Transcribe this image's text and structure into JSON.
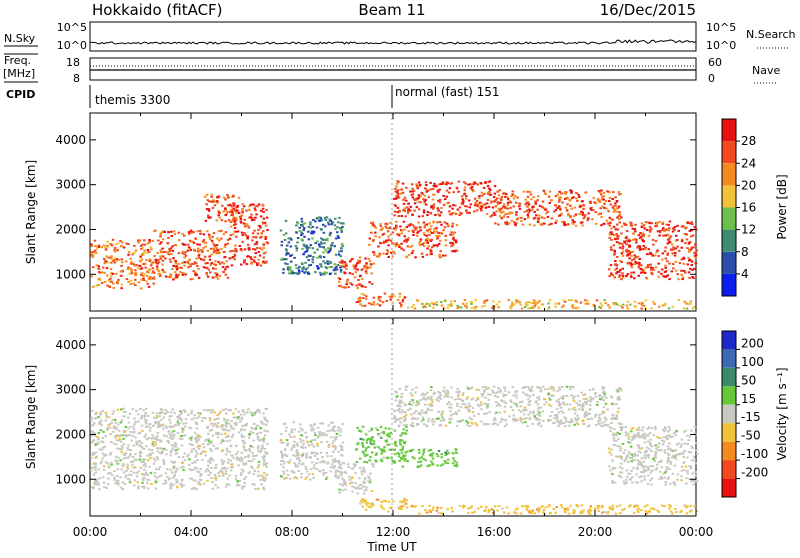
{
  "header": {
    "station": "Hokkaido (fitACF)",
    "beam": "Beam 11",
    "date": "16/Dec/2015"
  },
  "strip": {
    "nsky_label": "N.Sky",
    "nsky_ticks": [
      "10^5",
      "10^0"
    ],
    "nsearch_label": "N.Search",
    "nsearch_ticks": [
      "10^5",
      "10^0"
    ],
    "freq_label_line1": "Freq.",
    "freq_label_line2": "[MHz]",
    "freq_ticks": [
      "18",
      "8"
    ],
    "nave_label": "Nave",
    "nave_ticks": [
      "60",
      "0"
    ],
    "cpid_label": "CPID",
    "cpid_entries": [
      {
        "text": "themis 3300",
        "start_hour": 0
      },
      {
        "text": "normal (fast) 151",
        "start_hour": 12
      }
    ]
  },
  "xaxis": {
    "title": "Time UT",
    "ticks": [
      "00:00",
      "04:00",
      "08:00",
      "12:00",
      "16:00",
      "20:00",
      "00:00"
    ]
  },
  "power_panel": {
    "ylabel": "Slant Range [km]",
    "yticks": [
      "1000",
      "2000",
      "3000",
      "4000"
    ],
    "colorbar_title": "Power [dB]",
    "colorbar_ticks": [
      "4",
      "8",
      "12",
      "16",
      "20",
      "24",
      "28"
    ],
    "colors": [
      "#0a1ef0",
      "#2b4fa8",
      "#3f8a72",
      "#6cbf4a",
      "#f2c23a",
      "#f58a1e",
      "#f24a1e",
      "#e81010"
    ]
  },
  "velocity_panel": {
    "ylabel": "Slant Range [km]",
    "yticks": [
      "1000",
      "2000",
      "3000",
      "4000"
    ],
    "colorbar_title": "Velocity [m s⁻¹]",
    "colorbar_ticks": [
      "200",
      "100",
      "50",
      "15",
      "-15",
      "-50",
      "-100",
      "-200"
    ],
    "colors": [
      "#1e28c8",
      "#3c6ab4",
      "#3a8a6a",
      "#64c83a",
      "#c8c8c0",
      "#f2c23a",
      "#f58a1e",
      "#f24a1e",
      "#e81010"
    ]
  },
  "chart_data": [
    {
      "type": "heatmap",
      "title": "Hokkaido (fitACF) Beam 11 16/Dec/2015",
      "quantity": "Power",
      "xlabel": "Time UT",
      "ylabel": "Slant Range [km]",
      "x_range_hours": [
        0,
        24
      ],
      "ylim": [
        180,
        4600
      ],
      "color_range": [
        0,
        30
      ],
      "regions": [
        {
          "t_start": 0.0,
          "t_end": 2.5,
          "range_low": 700,
          "range_high": 1800,
          "power": 22
        },
        {
          "t_start": 2.5,
          "t_end": 5.5,
          "range_low": 900,
          "range_high": 2000,
          "power": 24
        },
        {
          "t_start": 5.5,
          "t_end": 7.0,
          "range_low": 1200,
          "range_high": 2600,
          "power": 26
        },
        {
          "t_start": 4.5,
          "t_end": 6.0,
          "range_low": 2200,
          "range_high": 2800,
          "power": 24
        },
        {
          "t_start": 7.5,
          "t_end": 10.0,
          "range_low": 1000,
          "range_high": 2300,
          "power": 8
        },
        {
          "t_start": 9.8,
          "t_end": 11.2,
          "range_low": 700,
          "range_high": 1400,
          "power": 24
        },
        {
          "t_start": 10.5,
          "t_end": 12.5,
          "range_low": 300,
          "range_high": 600,
          "power": 22
        },
        {
          "t_start": 11.0,
          "t_end": 14.5,
          "range_low": 1400,
          "range_high": 2200,
          "power": 24
        },
        {
          "t_start": 12.0,
          "t_end": 16.0,
          "range_low": 2300,
          "range_high": 3100,
          "power": 26
        },
        {
          "t_start": 16.0,
          "t_end": 21.0,
          "range_low": 2100,
          "range_high": 2900,
          "power": 24
        },
        {
          "t_start": 20.5,
          "t_end": 24.0,
          "range_low": 900,
          "range_high": 2200,
          "power": 26
        },
        {
          "t_start": 12.5,
          "t_end": 24.0,
          "range_low": 250,
          "range_high": 450,
          "power": 18
        }
      ]
    },
    {
      "type": "heatmap",
      "title": "Hokkaido (fitACF) Beam 11 16/Dec/2015",
      "quantity": "Velocity",
      "xlabel": "Time UT",
      "ylabel": "Slant Range [km]",
      "x_range_hours": [
        0,
        24
      ],
      "ylim": [
        180,
        4600
      ],
      "color_range": [
        -200,
        200
      ],
      "regions": [
        {
          "t_start": 0.0,
          "t_end": 7.0,
          "range_low": 800,
          "range_high": 2600,
          "velocity": 0
        },
        {
          "t_start": 7.5,
          "t_end": 10.0,
          "range_low": 1000,
          "range_high": 2300,
          "velocity": 0
        },
        {
          "t_start": 9.8,
          "t_end": 11.2,
          "range_low": 700,
          "range_high": 1400,
          "velocity": 0
        },
        {
          "t_start": 10.5,
          "t_end": 12.5,
          "range_low": 1400,
          "range_high": 2200,
          "velocity": 40
        },
        {
          "t_start": 12.0,
          "t_end": 14.5,
          "range_low": 1300,
          "range_high": 1700,
          "velocity": 40
        },
        {
          "t_start": 12.0,
          "t_end": 21.0,
          "range_low": 2200,
          "range_high": 3100,
          "velocity": 0
        },
        {
          "t_start": 20.5,
          "t_end": 24.0,
          "range_low": 900,
          "range_high": 2200,
          "velocity": 0
        },
        {
          "t_start": 10.5,
          "t_end": 12.5,
          "range_low": 300,
          "range_high": 600,
          "velocity": -40
        },
        {
          "t_start": 12.5,
          "t_end": 24.0,
          "range_low": 250,
          "range_high": 450,
          "velocity": -40
        }
      ]
    }
  ]
}
